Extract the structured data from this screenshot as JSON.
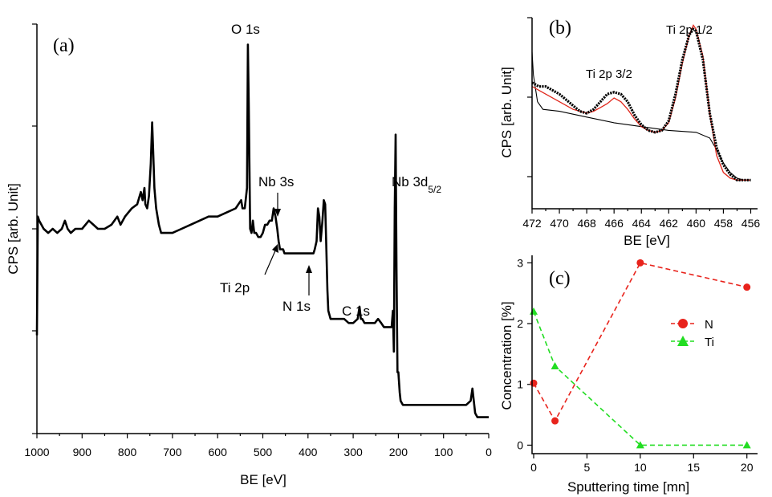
{
  "chart_data": [
    {
      "panel": "(a)",
      "type": "line",
      "title": "",
      "xlabel": "BE [eV]",
      "ylabel": "CPS [arb. Unit]",
      "xlim": [
        1000,
        0
      ],
      "ylim": [
        0,
        100
      ],
      "xticks": [
        1000,
        900,
        800,
        700,
        600,
        500,
        400,
        300,
        200,
        100,
        0
      ],
      "x_reversed": true,
      "series": [
        {
          "name": "survey spectrum",
          "x": [
            1000,
            998,
            995,
            985,
            975,
            965,
            955,
            945,
            938,
            932,
            925,
            915,
            900,
            885,
            875,
            865,
            850,
            835,
            822,
            815,
            805,
            790,
            778,
            770,
            766,
            762,
            760,
            756,
            752,
            748,
            745,
            743,
            740,
            736,
            730,
            725,
            720,
            715,
            700,
            680,
            660,
            640,
            620,
            600,
            580,
            560,
            548,
            545,
            540,
            535,
            533,
            531,
            528,
            525,
            522,
            519,
            515,
            510,
            505,
            500,
            495,
            490,
            485,
            480,
            476,
            472,
            468,
            465,
            462,
            458,
            455,
            452,
            440,
            420,
            405,
            395,
            388,
            385,
            381,
            378,
            375,
            372,
            368,
            365,
            362,
            360,
            357,
            355,
            350,
            340,
            330,
            320,
            310,
            300,
            290,
            286,
            283,
            280,
            275,
            265,
            258,
            252,
            245,
            238,
            232,
            225,
            220,
            215,
            212,
            210,
            208,
            206,
            204,
            202,
            200,
            197,
            195,
            190,
            180,
            170,
            160,
            150,
            140,
            130,
            120,
            100,
            80,
            60,
            50,
            40,
            36,
            33,
            30,
            25,
            20,
            10,
            5,
            0
          ],
          "y": [
            24,
            53,
            52,
            50,
            49,
            50,
            49,
            50,
            52,
            50,
            49,
            50,
            50,
            52,
            51,
            50,
            50,
            51,
            53,
            51,
            53,
            55,
            56,
            59,
            57,
            60,
            56,
            55,
            58,
            66,
            76,
            70,
            60,
            55,
            51,
            49,
            49,
            49,
            49,
            50,
            51,
            52,
            53,
            53,
            54,
            55,
            57,
            55,
            55,
            60,
            95,
            80,
            50,
            49,
            52,
            49,
            49,
            48,
            48,
            49,
            51,
            51,
            52,
            52,
            55,
            53,
            50,
            47,
            45,
            45,
            45,
            44,
            44,
            44,
            44,
            44,
            44,
            45,
            47,
            55,
            53,
            47,
            52,
            57,
            56,
            48,
            35,
            30,
            28,
            28,
            28,
            28,
            27,
            27,
            28,
            31,
            28,
            28,
            27,
            27,
            27,
            27,
            28,
            27,
            26,
            26,
            26,
            26,
            30,
            20,
            55,
            73,
            40,
            15,
            15,
            10,
            8,
            7,
            7,
            7,
            7,
            7,
            7,
            7,
            7,
            7,
            7,
            7,
            7,
            8,
            11,
            8,
            5,
            4,
            4,
            4,
            4,
            4
          ]
        }
      ],
      "annotations": [
        {
          "text": "O 1s",
          "x": 530
        },
        {
          "text": "Nb 3s",
          "x": 470
        },
        {
          "text": "Ti 2p",
          "x": 460
        },
        {
          "text": "N 1s",
          "x": 398
        },
        {
          "text": "C 1s",
          "x": 285
        },
        {
          "text": "Nb 3d",
          "subscript": "5/2",
          "x": 207
        }
      ],
      "panel_label": "(a)"
    },
    {
      "panel": "(b)",
      "type": "line",
      "title": "",
      "xlabel": "BE [eV]",
      "ylabel": "CPS [arb. Unit]",
      "xlim": [
        472,
        455.5
      ],
      "ylim": [
        0,
        100
      ],
      "xticks": [
        472,
        470,
        468,
        466,
        464,
        462,
        460,
        458,
        456
      ],
      "x_reversed": true,
      "series": [
        {
          "name": "measured (dotted)",
          "color": "#000000",
          "x": [
            472,
            471.5,
            471,
            470.5,
            470,
            469.5,
            469,
            468.5,
            468,
            467.5,
            467,
            466.5,
            466,
            465.5,
            465,
            464.5,
            464,
            463.5,
            463,
            462.5,
            462,
            461.5,
            461,
            460.5,
            460.2,
            460,
            459.5,
            459,
            458.5,
            458,
            457.5,
            457,
            456.5,
            456
          ],
          "y": [
            66,
            64,
            64,
            62,
            60,
            57,
            54,
            51,
            50,
            52,
            56,
            60,
            61,
            60,
            56,
            49,
            44,
            41,
            40,
            41,
            46,
            60,
            78,
            91,
            94,
            93,
            78,
            50,
            32,
            23,
            18,
            15,
            15,
            15
          ]
        },
        {
          "name": "fit",
          "color": "#e0271c",
          "x": [
            472,
            471,
            470,
            469,
            468,
            467.5,
            467,
            466.5,
            466,
            465.5,
            465,
            464.5,
            464,
            463.5,
            463,
            462.5,
            462,
            461.5,
            461,
            460.5,
            460.2,
            460,
            459.5,
            459,
            458.5,
            458,
            457.5,
            457,
            456.5,
            456
          ],
          "y": [
            64,
            60,
            56,
            52,
            50,
            51,
            53,
            55,
            58,
            56,
            52,
            47,
            43,
            41,
            40,
            41,
            45,
            58,
            76,
            91,
            96,
            94,
            80,
            50,
            28,
            19,
            16,
            15,
            15,
            15
          ]
        },
        {
          "name": "background",
          "color": "#000000",
          "x": [
            472,
            471.9,
            471.6,
            471.2,
            470,
            468,
            466,
            464,
            462,
            460,
            459,
            458.5,
            458,
            457.5,
            457,
            456.5,
            456
          ],
          "y": [
            82,
            70,
            56,
            52,
            51,
            48,
            45,
            43,
            41,
            40,
            37,
            31,
            24,
            19,
            16,
            15,
            15
          ]
        }
      ],
      "annotations": [
        {
          "text": "Ti 2p 3/2",
          "x": 466
        },
        {
          "text": "Ti 2p 1/2",
          "x": 460
        }
      ],
      "panel_label": "(b)"
    },
    {
      "panel": "(c)",
      "type": "line",
      "title": "",
      "xlabel": "Sputtering time [mn]",
      "ylabel": "Concentration [%]",
      "xlim": [
        0,
        21
      ],
      "ylim": [
        -0.1,
        3.15
      ],
      "xticks": [
        0,
        5,
        10,
        15,
        20
      ],
      "yticks": [
        0,
        1,
        2,
        3
      ],
      "series": [
        {
          "name": "N",
          "color": "#e8231c",
          "marker": "circle",
          "x": [
            0,
            2,
            10,
            20
          ],
          "y": [
            1.02,
            0.4,
            3.0,
            2.6
          ]
        },
        {
          "name": "Ti",
          "color": "#22dd22",
          "marker": "triangle",
          "x": [
            0,
            2,
            10,
            20
          ],
          "y": [
            2.2,
            1.3,
            0.0,
            0.0
          ]
        }
      ],
      "legend": "upper right",
      "panel_label": "(c)"
    }
  ]
}
